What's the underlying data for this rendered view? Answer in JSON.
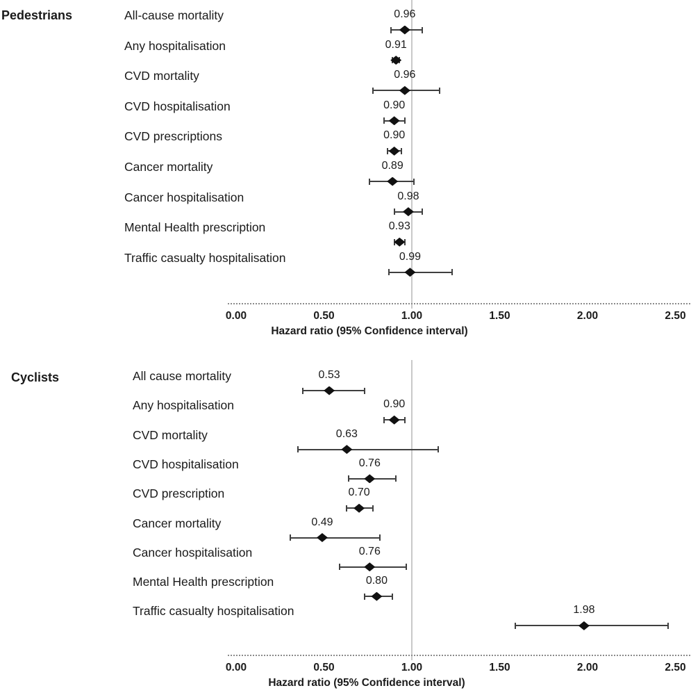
{
  "chart_data": {
    "type": "forest_plot",
    "title": "",
    "x_axis": {
      "label": "Hazard ratio (95% Confidence interval)",
      "tick_values": [
        0,
        0.5,
        1.0,
        1.5,
        2.0,
        2.5
      ],
      "tick_labels": [
        "0.00",
        "0.50",
        "1.00",
        "1.50",
        "2.00",
        "2.50"
      ],
      "range": [
        0,
        2.5
      ],
      "reference_line_value": 1.0,
      "grid": "off",
      "axis_style": "dotted horizontal rule"
    },
    "marker_shape": "filled black diamond with horizontal 95% CI whiskers",
    "panels": [
      {
        "group": "Pedestrians",
        "rows": [
          {
            "label": "All-cause mortality",
            "hr": 0.96,
            "hr_label": "0.96",
            "ci_low": 0.88,
            "ci_high": 1.06
          },
          {
            "label": "Any hospitalisation",
            "hr": 0.91,
            "hr_label": "0.91",
            "ci_low": 0.89,
            "ci_high": 0.93
          },
          {
            "label": "CVD mortality",
            "hr": 0.96,
            "hr_label": "0.96",
            "ci_low": 0.78,
            "ci_high": 1.16
          },
          {
            "label": "CVD hospitalisation",
            "hr": 0.9,
            "hr_label": "0.90",
            "ci_low": 0.84,
            "ci_high": 0.96
          },
          {
            "label": "CVD prescriptions",
            "hr": 0.9,
            "hr_label": "0.90",
            "ci_low": 0.86,
            "ci_high": 0.94
          },
          {
            "label": "Cancer mortality",
            "hr": 0.89,
            "hr_label": "0.89",
            "ci_low": 0.76,
            "ci_high": 1.01
          },
          {
            "label": "Cancer hospitalisation",
            "hr": 0.98,
            "hr_label": "0.98",
            "ci_low": 0.9,
            "ci_high": 1.06
          },
          {
            "label": "Mental Health prescription",
            "hr": 0.93,
            "hr_label": "0.93",
            "ci_low": 0.9,
            "ci_high": 0.96
          },
          {
            "label": "Traffic casualty hospitalisation",
            "hr": 0.99,
            "hr_label": "0.99",
            "ci_low": 0.87,
            "ci_high": 1.23
          }
        ]
      },
      {
        "group": "Cyclists",
        "rows": [
          {
            "label": "All cause mortality",
            "hr": 0.53,
            "hr_label": "0.53",
            "ci_low": 0.38,
            "ci_high": 0.73
          },
          {
            "label": "Any hospitalisation",
            "hr": 0.9,
            "hr_label": "0.90",
            "ci_low": 0.84,
            "ci_high": 0.96
          },
          {
            "label": "CVD mortality",
            "hr": 0.63,
            "hr_label": "0.63",
            "ci_low": 0.35,
            "ci_high": 1.15
          },
          {
            "label": "CVD hospitalisation",
            "hr": 0.76,
            "hr_label": "0.76",
            "ci_low": 0.64,
            "ci_high": 0.91
          },
          {
            "label": "CVD prescription",
            "hr": 0.7,
            "hr_label": "0.70",
            "ci_low": 0.63,
            "ci_high": 0.78
          },
          {
            "label": "Cancer mortality",
            "hr": 0.49,
            "hr_label": "0.49",
            "ci_low": 0.31,
            "ci_high": 0.82
          },
          {
            "label": "Cancer hospitalisation",
            "hr": 0.76,
            "hr_label": "0.76",
            "ci_low": 0.59,
            "ci_high": 0.97
          },
          {
            "label": "Mental Health prescription",
            "hr": 0.8,
            "hr_label": "0.80",
            "ci_low": 0.73,
            "ci_high": 0.89
          },
          {
            "label": "Traffic casualty hospitalisation",
            "hr": 1.98,
            "hr_label": "1.98",
            "ci_low": 1.59,
            "ci_high": 2.46
          }
        ]
      }
    ],
    "colors": {
      "marker": "#111111",
      "error_bar": "#3f3f3f",
      "reference_line": "#c9c9c9",
      "dashed_axis": "#8a8a8a",
      "text": "#1a1a1a"
    }
  }
}
